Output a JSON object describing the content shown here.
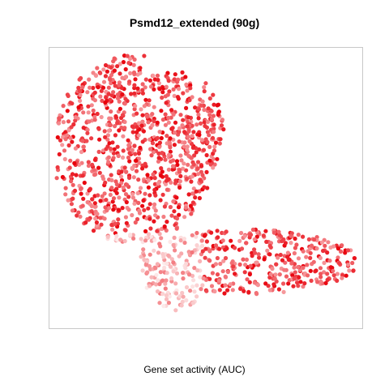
{
  "chart_data": {
    "type": "scatter",
    "title": "Psmd12_extended (90g)",
    "xlabel": "Gene set activity (AUC)",
    "ylabel": "",
    "grid": false,
    "legend": "none",
    "color_low": "#fdecec",
    "color_high": "#e8000a",
    "n_points": 1500,
    "clusters": [
      {
        "name": "upper-left",
        "x": [
          20,
          200
        ],
        "y": [
          90,
          330
        ],
        "density": "high"
      },
      {
        "name": "lower-right",
        "x": [
          170,
          380
        ],
        "y": [
          15,
          145
        ],
        "density": "medium"
      }
    ]
  }
}
